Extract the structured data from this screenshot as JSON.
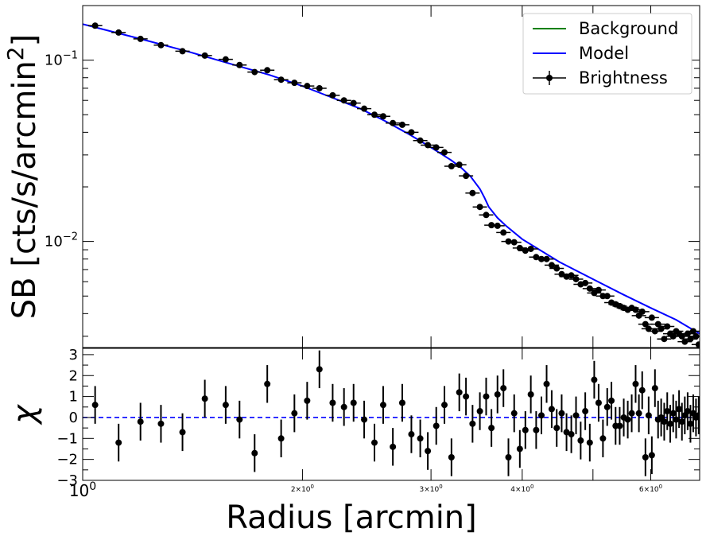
{
  "chart_data": [
    {
      "panel": "surface-brightness",
      "type": "scatter",
      "ylabel": "SB [cts/s/arcmin$^2$]",
      "xscale": "log",
      "yscale": "log",
      "xlim": [
        1.0,
        7.0
      ],
      "ylim": [
        0.0026,
        0.2
      ],
      "y_ticks": [
        {
          "value": 0.1,
          "label": "10$^{-1}$"
        },
        {
          "value": 0.01,
          "label": "10$^{-2}$"
        }
      ],
      "legend": {
        "placement": "top-right",
        "entries": [
          "Background",
          "Model",
          "Brightness"
        ]
      },
      "colors": {
        "background": "#008000",
        "model": "#0000ff",
        "points": "#000000"
      },
      "series": [
        {
          "name": "Brightness",
          "style": "errorbar-points",
          "x": [
            1.04,
            1.12,
            1.2,
            1.28,
            1.37,
            1.47,
            1.57,
            1.64,
            1.72,
            1.79,
            1.87,
            1.95,
            2.03,
            2.11,
            2.2,
            2.28,
            2.35,
            2.43,
            2.51,
            2.58,
            2.66,
            2.74,
            2.82,
            2.9,
            2.97,
            3.05,
            3.13,
            3.2,
            3.28,
            3.35,
            3.42,
            3.5,
            3.57,
            3.63,
            3.7,
            3.77,
            3.83,
            3.9,
            3.97,
            4.04,
            4.11,
            4.18,
            4.25,
            4.32,
            4.39,
            4.46,
            4.53,
            4.6,
            4.67,
            4.74,
            4.81,
            4.88,
            4.95,
            5.02,
            5.09,
            5.16,
            5.23,
            5.3,
            5.37,
            5.44,
            5.51,
            5.58,
            5.65,
            5.72,
            5.78,
            5.84,
            5.9,
            5.96,
            6.02,
            6.08,
            6.14,
            6.2,
            6.26,
            6.32,
            6.38,
            6.44,
            6.5,
            6.56,
            6.62,
            6.68,
            6.74,
            6.8,
            6.86,
            6.92,
            6.98
          ],
          "y": [
            0.155,
            0.142,
            0.131,
            0.121,
            0.112,
            0.106,
            0.101,
            0.094,
            0.086,
            0.088,
            0.078,
            0.075,
            0.072,
            0.07,
            0.064,
            0.06,
            0.058,
            0.054,
            0.05,
            0.049,
            0.045,
            0.044,
            0.04,
            0.036,
            0.034,
            0.033,
            0.031,
            0.026,
            0.0265,
            0.023,
            0.0185,
            0.0155,
            0.014,
            0.0123,
            0.0122,
            0.0112,
            0.01,
            0.0099,
            0.0092,
            0.0089,
            0.0091,
            0.0082,
            0.008,
            0.008,
            0.0074,
            0.0071,
            0.0066,
            0.0064,
            0.0065,
            0.0062,
            0.0058,
            0.0059,
            0.0055,
            0.0052,
            0.0054,
            0.005,
            0.005,
            0.0046,
            0.0045,
            0.0044,
            0.0043,
            0.0042,
            0.0043,
            0.0042,
            0.0039,
            0.0041,
            0.0035,
            0.0033,
            0.0038,
            0.0032,
            0.0035,
            0.0033,
            0.0029,
            0.0034,
            0.0031,
            0.003,
            0.0032,
            0.0031,
            0.003,
            0.0028,
            0.0031,
            0.0029,
            0.0032,
            0.003,
            0.0027
          ]
        },
        {
          "name": "Model",
          "style": "line",
          "x": [
            1.0,
            1.2,
            1.4,
            1.6,
            1.8,
            2.0,
            2.2,
            2.4,
            2.6,
            2.8,
            3.0,
            3.2,
            3.3,
            3.4,
            3.5,
            3.55,
            3.6,
            3.7,
            3.8,
            4.0,
            4.5,
            5.0,
            5.5,
            6.0,
            6.5,
            7.0
          ],
          "y": [
            0.158,
            0.131,
            0.111,
            0.095,
            0.083,
            0.072,
            0.062,
            0.054,
            0.046,
            0.039,
            0.033,
            0.028,
            0.0255,
            0.0228,
            0.0195,
            0.0175,
            0.0155,
            0.0135,
            0.0122,
            0.0103,
            0.0077,
            0.0062,
            0.0051,
            0.0043,
            0.0037,
            0.0031
          ]
        },
        {
          "name": "Background",
          "style": "line",
          "x": [],
          "y": []
        }
      ]
    },
    {
      "panel": "residuals",
      "type": "scatter",
      "ylabel": "$\\chi$",
      "xlabel": "Radius [arcmin]",
      "xscale": "log",
      "xlim": [
        1.0,
        7.0
      ],
      "ylim": [
        -3,
        3.3
      ],
      "y_ticks": [
        3,
        2,
        1,
        0,
        -1,
        -2,
        -3
      ],
      "x_ticks": [
        {
          "value": 1,
          "label": "10$^0$"
        },
        {
          "value": 2,
          "label": "2×10$^0$"
        },
        {
          "value": 3,
          "label": "3×10$^0$"
        },
        {
          "value": 4,
          "label": "4×10$^0$"
        },
        {
          "value": 6,
          "label": "6×10$^0$"
        }
      ],
      "reference_line": {
        "y": 0,
        "style": "dashed",
        "color": "#0000ff"
      },
      "series": [
        {
          "style": "errorbar-points",
          "x": [
            1.04,
            1.12,
            1.2,
            1.28,
            1.37,
            1.47,
            1.57,
            1.64,
            1.72,
            1.79,
            1.87,
            1.95,
            2.03,
            2.11,
            2.2,
            2.28,
            2.35,
            2.43,
            2.51,
            2.58,
            2.66,
            2.74,
            2.82,
            2.9,
            2.97,
            3.05,
            3.13,
            3.2,
            3.28,
            3.35,
            3.42,
            3.5,
            3.57,
            3.63,
            3.7,
            3.77,
            3.83,
            3.9,
            3.97,
            4.04,
            4.11,
            4.18,
            4.25,
            4.32,
            4.39,
            4.46,
            4.53,
            4.6,
            4.67,
            4.74,
            4.81,
            4.88,
            4.95,
            5.02,
            5.09,
            5.16,
            5.23,
            5.3,
            5.37,
            5.44,
            5.51,
            5.58,
            5.65,
            5.72,
            5.78,
            5.84,
            5.9,
            5.96,
            6.02,
            6.08,
            6.14,
            6.2,
            6.26,
            6.32,
            6.38,
            6.44,
            6.5,
            6.56,
            6.62,
            6.68,
            6.74,
            6.8,
            6.86,
            6.92,
            6.98
          ],
          "y": [
            0.6,
            -1.2,
            -0.2,
            -0.3,
            -0.7,
            0.9,
            0.6,
            -0.1,
            -1.7,
            1.6,
            -1.0,
            0.2,
            0.8,
            2.3,
            0.7,
            0.5,
            0.7,
            -0.1,
            -1.2,
            0.6,
            -1.4,
            0.7,
            -0.8,
            -1.0,
            -1.6,
            -0.4,
            0.6,
            -1.9,
            1.2,
            1.0,
            -0.3,
            0.3,
            1.0,
            -0.5,
            1.1,
            1.4,
            -1.9,
            0.2,
            -1.5,
            -0.6,
            1.1,
            -0.6,
            0.1,
            1.6,
            0.4,
            -0.5,
            0.2,
            -0.7,
            -0.8,
            0.1,
            -1.1,
            0.3,
            -1.2,
            1.8,
            0.7,
            -1.0,
            0.5,
            0.8,
            -0.4,
            -0.4,
            0.0,
            -0.1,
            0.2,
            1.6,
            0.2,
            1.3,
            -1.9,
            0.1,
            -1.8,
            1.4,
            -0.1,
            0.0,
            -0.2,
            0.3,
            -0.3,
            0.2,
            -0.1,
            0.4,
            -0.2,
            0.1,
            0.3,
            -0.3,
            0.2,
            0.0,
            0.1
          ],
          "yerr": 0.9
        }
      ]
    }
  ]
}
